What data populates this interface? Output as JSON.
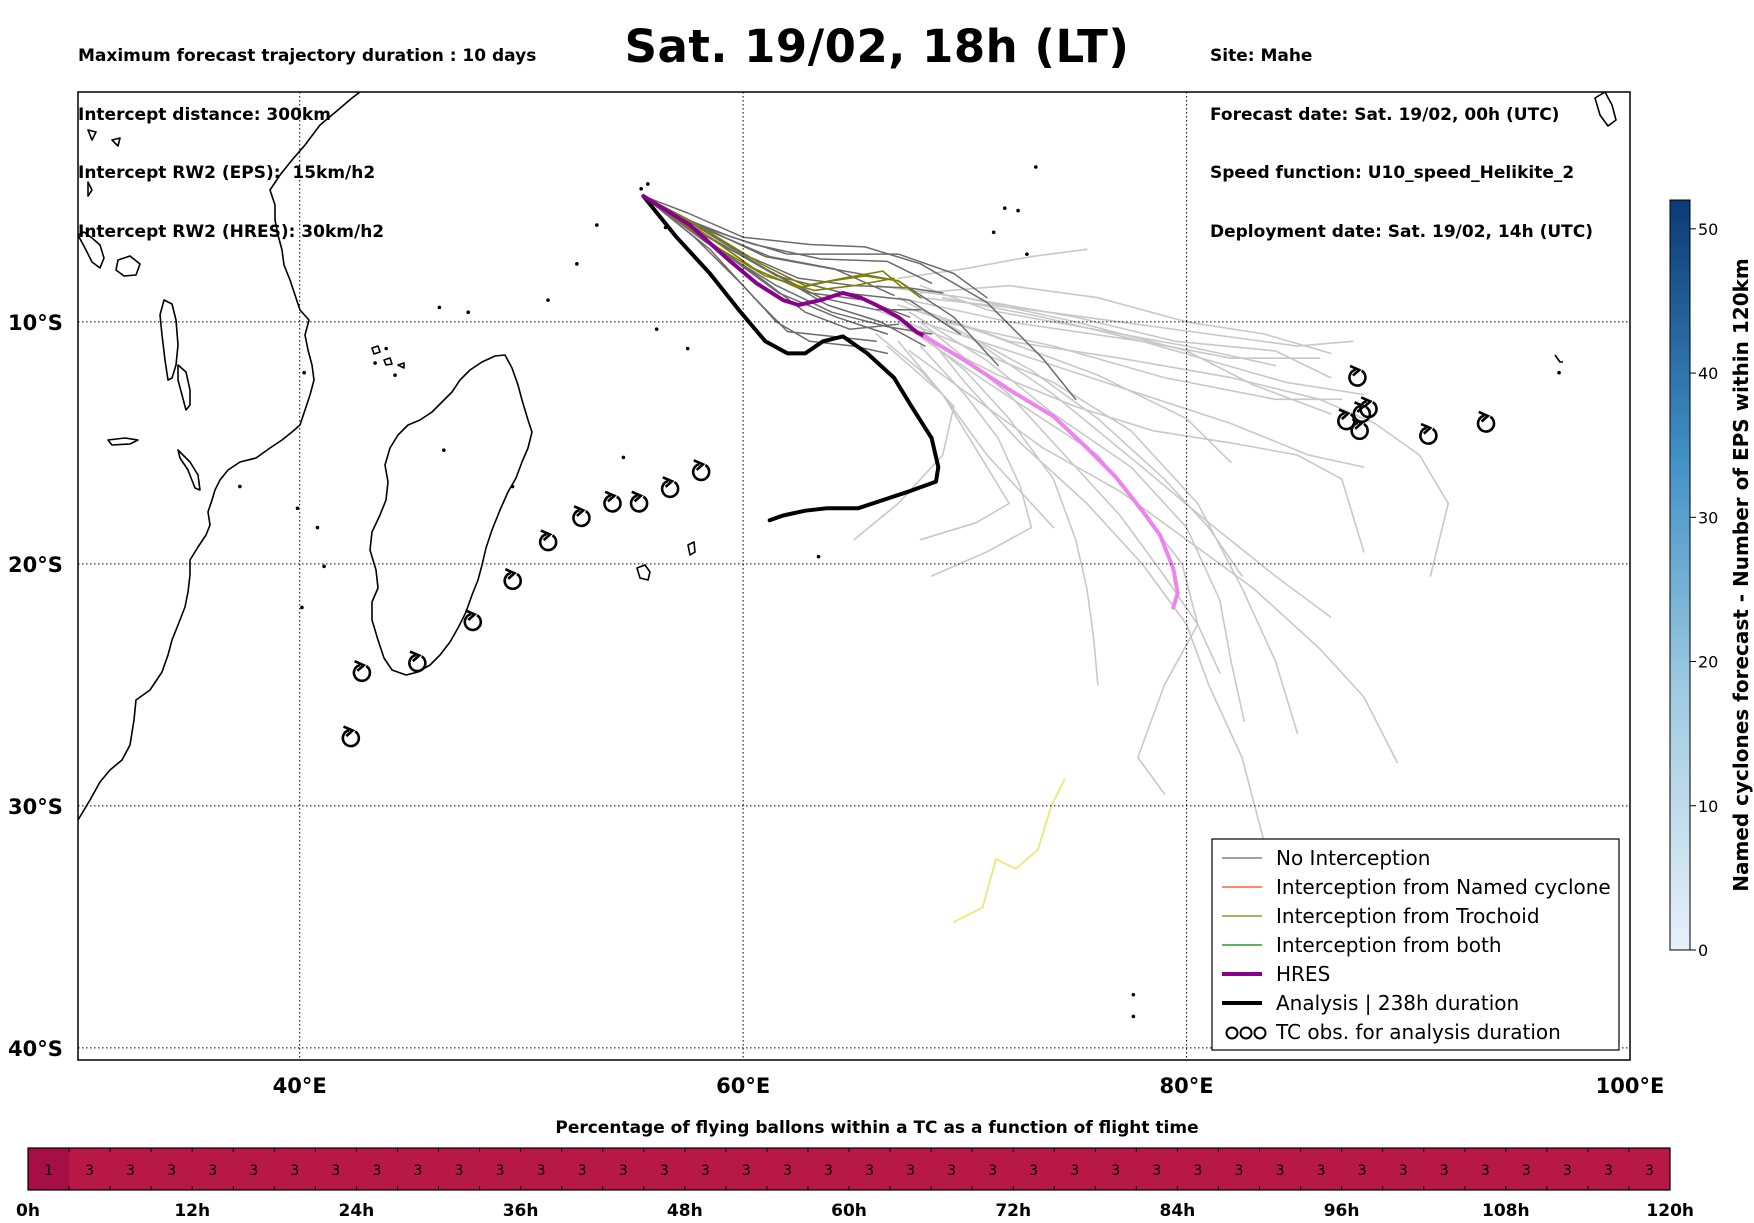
{
  "header_left": [
    "Maximum forecast trajectory duration : 10 days",
    "Intercept distance: 300km",
    "Intercept RW2 (EPS):  15km/h2",
    "Intercept RW2 (HRES): 30km/h2"
  ],
  "header_right": [
    "Site: Mahe",
    "Forecast date: Sat. 19/02, 00h (UTC)",
    "Speed function: U10_speed_Helikite_2",
    "Deployment date: Sat. 19/02, 14h (UTC)"
  ],
  "title": "Sat. 19/02, 18h (LT)",
  "map": {
    "lon_range": [
      30,
      100
    ],
    "lat_range": [
      -40.5,
      -0.5
    ],
    "lon_ticks": [
      {
        "v": 40,
        "label": "40°E"
      },
      {
        "v": 60,
        "label": "60°E"
      },
      {
        "v": 80,
        "label": "80°E"
      },
      {
        "v": 100,
        "label": "100°E"
      }
    ],
    "lat_ticks": [
      {
        "v": -10,
        "label": "10°S"
      },
      {
        "v": -20,
        "label": "20°S"
      },
      {
        "v": -30,
        "label": "30°S"
      },
      {
        "v": -40,
        "label": "40°S"
      }
    ],
    "grid": "dotted",
    "colors": {
      "no_interception": "#6b6b6b",
      "eps_late": "#c8c8c8",
      "named_cyclone": "#ff4500",
      "trochoid": "#808000",
      "both": "#008000",
      "hres": "#8b008b",
      "hres_late": "#ee82ee",
      "analysis": "#000000",
      "yellow_track": "#e8e87a"
    },
    "tc_obs": [
      [
        42.3,
        -27.2
      ],
      [
        42.8,
        -24.5
      ],
      [
        45.3,
        -24.1
      ],
      [
        47.8,
        -22.4
      ],
      [
        49.6,
        -20.7
      ],
      [
        51.2,
        -19.1
      ],
      [
        52.7,
        -18.1
      ],
      [
        54.1,
        -17.5
      ],
      [
        55.3,
        -17.5
      ],
      [
        56.7,
        -16.9
      ],
      [
        58.1,
        -16.2
      ],
      [
        87.7,
        -12.3
      ],
      [
        87.2,
        -14.1
      ],
      [
        87.9,
        -13.8
      ],
      [
        88.2,
        -13.6
      ],
      [
        87.8,
        -14.5
      ],
      [
        90.9,
        -14.7
      ],
      [
        93.5,
        -14.2
      ]
    ]
  },
  "legend": [
    {
      "label": "No Interception",
      "type": "no_interception"
    },
    {
      "label": "Interception from Named cyclone",
      "type": "named_cyclone"
    },
    {
      "label": "Interception from Trochoid",
      "type": "trochoid"
    },
    {
      "label": "Interception from both",
      "type": "both"
    },
    {
      "label": "HRES",
      "type": "hres"
    },
    {
      "label": "Analysis | 238h duration",
      "type": "analysis"
    },
    {
      "label": "TC obs. for analysis duration",
      "type": "tc_obs"
    }
  ],
  "colorbar": {
    "label": "Named cyclones forecast - Number of EPS within 120km",
    "range": [
      0,
      52
    ],
    "ticks": [
      0,
      10,
      20,
      30,
      40,
      50
    ],
    "color_low": "#e7f0fa",
    "color_high": "#0b3a75"
  },
  "bottom_bar": {
    "title": "Percentage of flying ballons within a TC as a function of flight time",
    "cells": [
      1,
      3,
      3,
      3,
      3,
      3,
      3,
      3,
      3,
      3,
      3,
      3,
      3,
      3,
      3,
      3,
      3,
      3,
      3,
      3,
      3,
      3,
      3,
      3,
      3,
      3,
      3,
      3,
      3,
      3,
      3,
      3,
      3,
      3,
      3,
      3,
      3,
      3,
      3,
      3
    ],
    "hours_range": [
      0,
      120
    ],
    "ticks": [
      "0h",
      "12h",
      "24h",
      "36h",
      "48h",
      "60h",
      "72h",
      "84h",
      "96h",
      "108h",
      "120h"
    ],
    "colors": {
      "1": "#a50f46",
      "3": "#b81846"
    }
  }
}
